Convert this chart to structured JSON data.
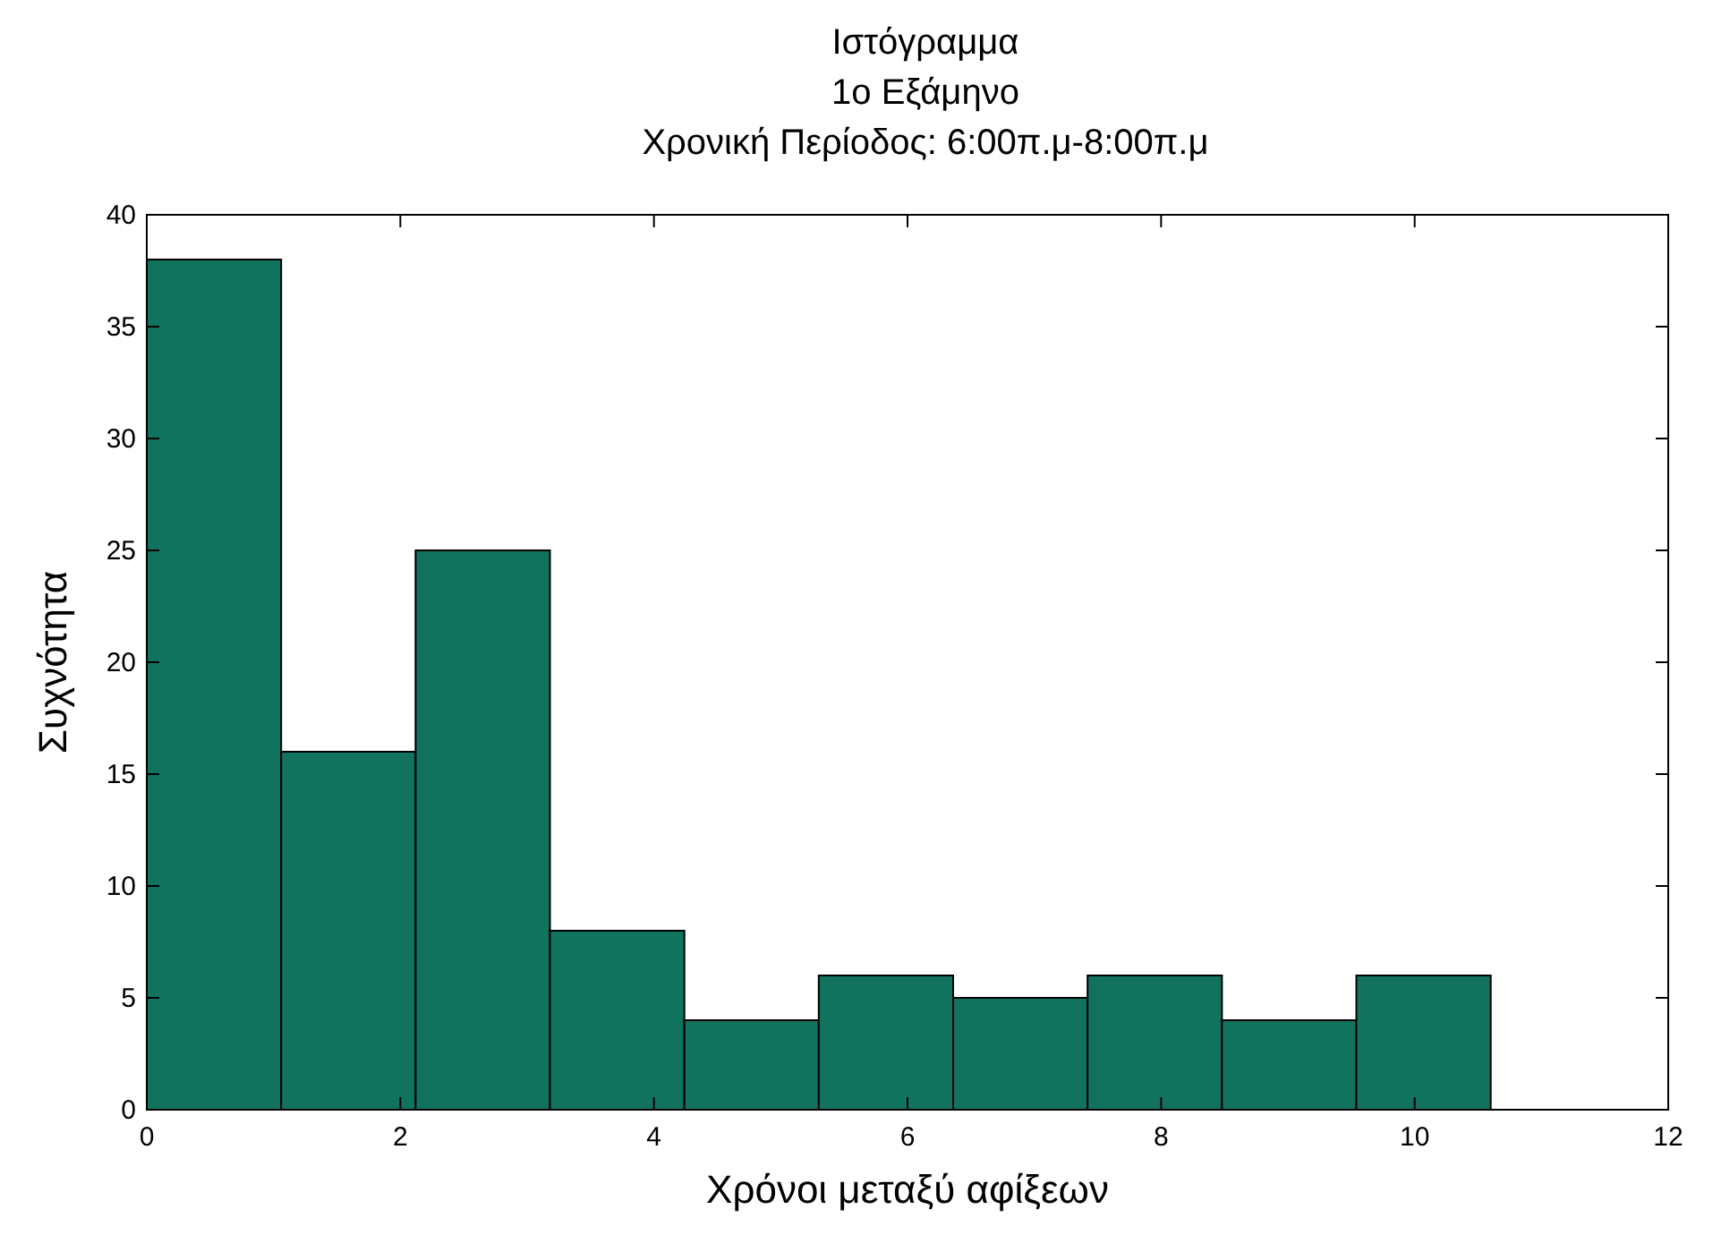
{
  "chart_data": {
    "type": "histogram",
    "title": "Ιστόγραμμα\n1ο Εξάμηνο\nΧρονική Περίοδος: 6:00π.μ-8:00π.μ",
    "xlabel": "Χρόνοι μεταξύ αφίξεων",
    "ylabel": "Συχνότητα",
    "bins": [
      0,
      1.06,
      2.12,
      3.18,
      4.24,
      5.3,
      6.36,
      7.42,
      8.48,
      9.54,
      10.6
    ],
    "values": [
      38,
      16,
      25,
      8,
      4,
      6,
      5,
      6,
      4,
      6
    ],
    "color": "#11735e",
    "xlim": [
      0,
      12
    ],
    "xticks": [
      0,
      2,
      4,
      6,
      8,
      10,
      12
    ],
    "ylim": [
      0,
      40
    ],
    "yticks": [
      0,
      5,
      10,
      15,
      20,
      25,
      30,
      35,
      40
    ],
    "grid": false
  }
}
